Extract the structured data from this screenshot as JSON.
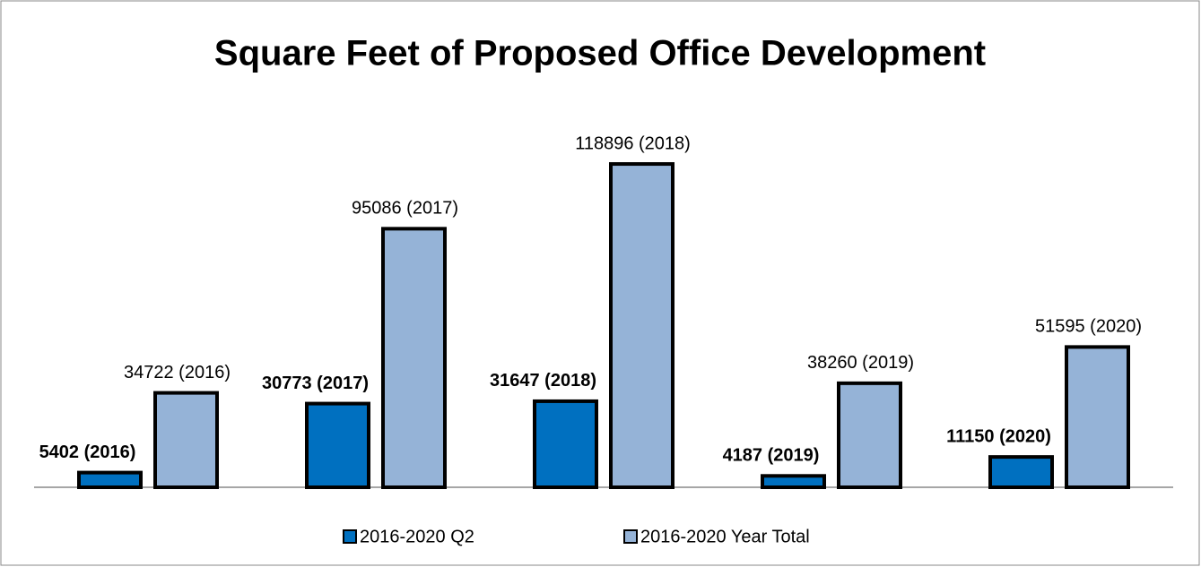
{
  "chart_data": {
    "type": "bar",
    "title": "Square Feet of Proposed Office Development",
    "categories": [
      null,
      null,
      null,
      null,
      null
    ],
    "series": [
      {
        "name": "2016-2020 Q2",
        "color": "#0070c0",
        "values": [
          5402,
          30773,
          31647,
          4187,
          11150
        ],
        "value_labels": [
          "5402 (2016)",
          "30773 (2017)",
          "31647 (2018)",
          "4187 (2019)",
          "11150 (2020)"
        ]
      },
      {
        "name": "2016-2020 Year Total",
        "color": "#95b3d7",
        "values": [
          34722,
          95086,
          118896,
          38260,
          51595
        ],
        "value_labels": [
          "34722 (2016)",
          "95086 (2017)",
          "118896 (2018)",
          "38260 (2019)",
          "51595 (2020)"
        ]
      }
    ],
    "ylim": [
      0,
      140000
    ],
    "legend": "bottom"
  }
}
